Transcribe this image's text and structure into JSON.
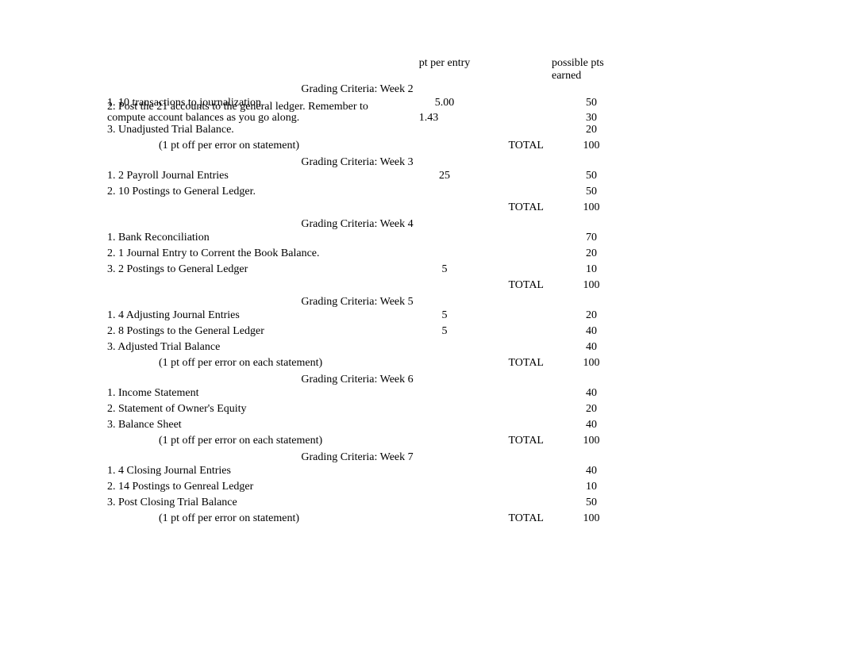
{
  "header": {
    "pt_per_entry": "pt per entry",
    "possible_pts": "possible pts earned"
  },
  "weeks": [
    {
      "title": "Grading Criteria: Week 2",
      "items": [
        {
          "desc": "1.  10 transactions to journalization",
          "pt": "5.00",
          "pts": "50"
        },
        {
          "desc": "2. Post the 21 accounts to the general ledger. Remember to compute account balances as you go along.",
          "pt": "1.43",
          "pts": "30",
          "multiline": true
        },
        {
          "desc": "3. Unadjusted Trial Balance.",
          "pt": "",
          "pts": "20"
        }
      ],
      "note": "(1 pt off per error on statement)",
      "total_label": "TOTAL",
      "total": "100"
    },
    {
      "title": "Grading Criteria: Week 3",
      "items": [
        {
          "desc": "1. 2 Payroll Journal Entries",
          "pt": "25",
          "pts": "50"
        },
        {
          "desc": "2.  10 Postings to General Ledger.",
          "pt": "",
          "pts": "50"
        }
      ],
      "note": "",
      "total_label": "TOTAL",
      "total": "100"
    },
    {
      "title": "Grading Criteria: Week 4",
      "items": [
        {
          "desc": "1. Bank Reconciliation",
          "pt": "",
          "pts": "70"
        },
        {
          "desc": "2.  1 Journal Entry to Corrent the Book Balance.",
          "pt": "",
          "pts": "20"
        },
        {
          "desc": "3. 2 Postings to General Ledger",
          "pt": "5",
          "pts": "10"
        }
      ],
      "note": "",
      "total_label": "TOTAL",
      "total": "100"
    },
    {
      "title": "Grading Criteria: Week 5",
      "items": [
        {
          "desc": "1.  4 Adjusting Journal Entries",
          "pt": "5",
          "pts": "20"
        },
        {
          "desc": "2. 8 Postings to the General Ledger",
          "pt": "5",
          "pts": "40"
        },
        {
          "desc": "3. Adjusted Trial Balance",
          "pt": "",
          "pts": "40"
        }
      ],
      "note": "(1 pt off per error on each statement)",
      "total_label": "TOTAL",
      "total": "100"
    },
    {
      "title": "Grading Criteria: Week 6",
      "items": [
        {
          "desc": "1.  Income Statement",
          "pt": "",
          "pts": "40"
        },
        {
          "desc": "2.  Statement of Owner's Equity",
          "pt": "",
          "pts": "20"
        },
        {
          "desc": "3.  Balance Sheet",
          "pt": "",
          "pts": "40"
        }
      ],
      "note": "(1 pt off per error on each statement)",
      "total_label": "TOTAL",
      "total": "100"
    },
    {
      "title": "Grading Criteria: Week 7",
      "items": [
        {
          "desc": "1. 4 Closing Journal Entries",
          "pt": "",
          "pts": "40"
        },
        {
          "desc": "2. 14 Postings to Genreal Ledger",
          "pt": "",
          "pts": "10"
        },
        {
          "desc": "3.  Post Closing Trial Balance",
          "pt": "",
          "pts": "50"
        }
      ],
      "note": "(1 pt off per error on statement)",
      "total_label": "TOTAL",
      "total": "100"
    }
  ]
}
